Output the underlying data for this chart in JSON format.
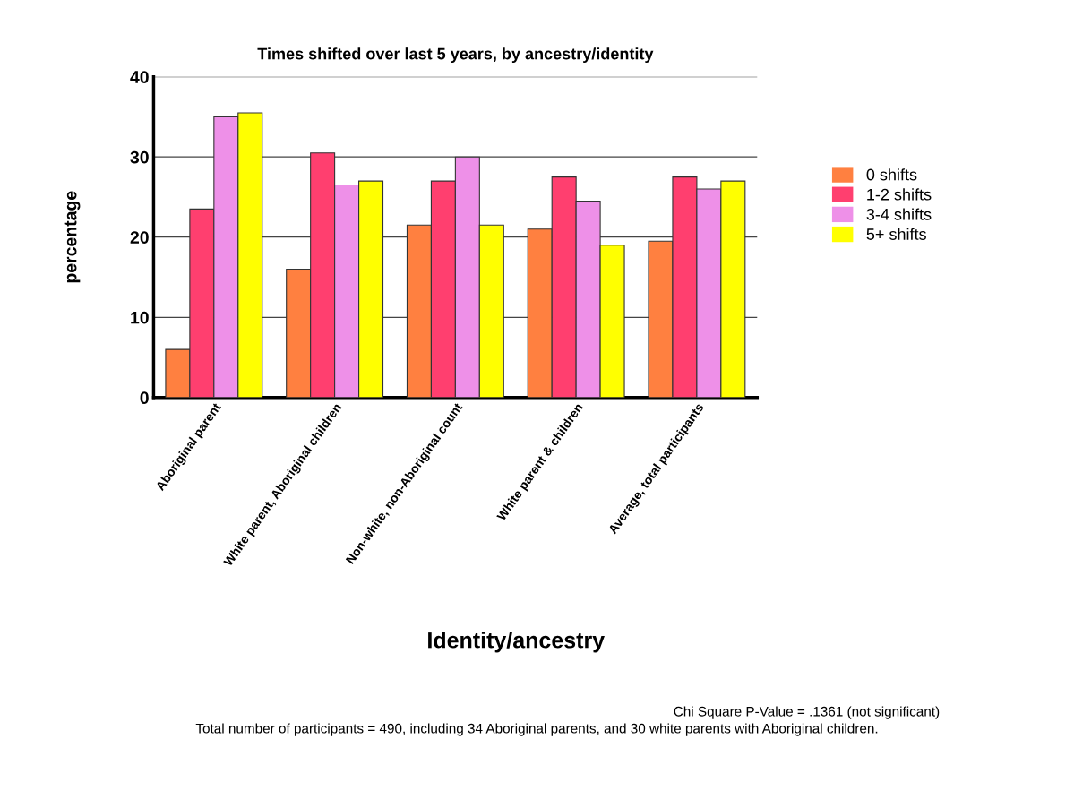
{
  "chart_data": {
    "type": "bar",
    "title": "Times shifted over last 5 years, by ancestry/identity",
    "xlabel": "Identity/ancestry",
    "ylabel": "percentage",
    "categories": [
      "Aboriginal parent",
      "White parent, Aboriginal children",
      "Non-white, non-Aboriginal count",
      "White parent & children",
      "Average, total participants"
    ],
    "series": [
      {
        "name": "0 shifts",
        "color": "#ff8040",
        "values": [
          6,
          16,
          21.5,
          21,
          19.5
        ]
      },
      {
        "name": "1-2 shifts",
        "color": "#ff3f6f",
        "values": [
          23.5,
          30.5,
          27,
          27.5,
          27.5
        ]
      },
      {
        "name": "3-4 shifts",
        "color": "#ee90e8",
        "values": [
          35,
          26.5,
          30,
          24.5,
          26
        ]
      },
      {
        "name": "5+ shifts",
        "color": "#ffff00",
        "values": [
          35.5,
          27,
          21.5,
          19,
          27
        ]
      }
    ],
    "ylim": [
      0,
      40
    ],
    "yticks": [
      0,
      10,
      20,
      30,
      40
    ],
    "grid": "y",
    "legend": "right",
    "annotations": [
      "Chi Square P-Value = .1361 (not significant)",
      "Total number of participants = 490, including 34 Aboriginal parents, and 30 white parents with Aboriginal children."
    ]
  }
}
